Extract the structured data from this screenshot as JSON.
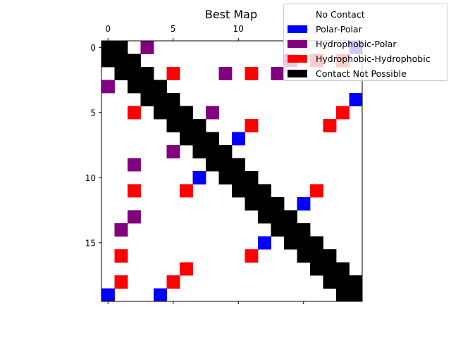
{
  "chart_data": {
    "type": "heatmap",
    "title": "Best Map",
    "size": 20,
    "xlim": [
      -0.5,
      19.5
    ],
    "ylim": [
      19.5,
      -0.5
    ],
    "xticks": [
      0,
      5,
      10,
      15
    ],
    "yticks": [
      0,
      5,
      10,
      15
    ],
    "xaxis_position": "top",
    "legend_position": "top-right",
    "grid": false,
    "categories": [
      {
        "code": 0,
        "label": "No Contact",
        "color": "#ffffff"
      },
      {
        "code": 1,
        "label": "Polar-Polar",
        "color": "#0000ff"
      },
      {
        "code": 2,
        "label": "Hydrophobic-Polar",
        "color": "#800080"
      },
      {
        "code": 3,
        "label": "Hydrophobic-Hydrophobic",
        "color": "#ff0000"
      },
      {
        "code": 4,
        "label": "Contact Not Possible",
        "color": "#000000"
      }
    ],
    "matrix": [
      [
        4,
        4,
        0,
        2,
        0,
        0,
        0,
        0,
        0,
        0,
        0,
        0,
        0,
        0,
        0,
        0,
        0,
        0,
        0,
        1
      ],
      [
        4,
        4,
        4,
        0,
        0,
        0,
        0,
        0,
        0,
        0,
        0,
        0,
        0,
        0,
        2,
        0,
        3,
        0,
        3,
        0
      ],
      [
        0,
        4,
        4,
        4,
        0,
        3,
        0,
        0,
        0,
        2,
        0,
        3,
        0,
        2,
        0,
        0,
        0,
        0,
        0,
        0
      ],
      [
        2,
        0,
        4,
        4,
        4,
        0,
        0,
        0,
        0,
        0,
        0,
        0,
        0,
        0,
        0,
        0,
        0,
        0,
        0,
        0
      ],
      [
        0,
        0,
        0,
        4,
        4,
        4,
        0,
        0,
        0,
        0,
        0,
        0,
        0,
        0,
        0,
        0,
        0,
        0,
        0,
        1
      ],
      [
        0,
        0,
        3,
        0,
        4,
        4,
        4,
        0,
        2,
        0,
        0,
        0,
        0,
        0,
        0,
        0,
        0,
        0,
        3,
        0
      ],
      [
        0,
        0,
        0,
        0,
        0,
        4,
        4,
        4,
        0,
        0,
        0,
        3,
        0,
        0,
        0,
        0,
        0,
        3,
        0,
        0
      ],
      [
        0,
        0,
        0,
        0,
        0,
        0,
        4,
        4,
        4,
        0,
        1,
        0,
        0,
        0,
        0,
        0,
        0,
        0,
        0,
        0
      ],
      [
        0,
        0,
        0,
        0,
        0,
        2,
        0,
        4,
        4,
        4,
        0,
        0,
        0,
        0,
        0,
        0,
        0,
        0,
        0,
        0
      ],
      [
        0,
        0,
        2,
        0,
        0,
        0,
        0,
        0,
        4,
        4,
        4,
        0,
        0,
        0,
        0,
        0,
        0,
        0,
        0,
        0
      ],
      [
        0,
        0,
        0,
        0,
        0,
        0,
        0,
        1,
        0,
        4,
        4,
        4,
        0,
        0,
        0,
        0,
        0,
        0,
        0,
        0
      ],
      [
        0,
        0,
        3,
        0,
        0,
        0,
        3,
        0,
        0,
        0,
        4,
        4,
        4,
        0,
        0,
        0,
        3,
        0,
        0,
        0
      ],
      [
        0,
        0,
        0,
        0,
        0,
        0,
        0,
        0,
        0,
        0,
        0,
        4,
        4,
        4,
        0,
        1,
        0,
        0,
        0,
        0
      ],
      [
        0,
        0,
        2,
        0,
        0,
        0,
        0,
        0,
        0,
        0,
        0,
        0,
        4,
        4,
        4,
        0,
        0,
        0,
        0,
        0
      ],
      [
        0,
        2,
        0,
        0,
        0,
        0,
        0,
        0,
        0,
        0,
        0,
        0,
        0,
        4,
        4,
        4,
        0,
        0,
        0,
        0
      ],
      [
        0,
        0,
        0,
        0,
        0,
        0,
        0,
        0,
        0,
        0,
        0,
        0,
        1,
        0,
        4,
        4,
        4,
        0,
        0,
        0
      ],
      [
        0,
        3,
        0,
        0,
        0,
        0,
        0,
        0,
        0,
        0,
        0,
        3,
        0,
        0,
        0,
        4,
        4,
        4,
        0,
        0
      ],
      [
        0,
        0,
        0,
        0,
        0,
        0,
        3,
        0,
        0,
        0,
        0,
        0,
        0,
        0,
        0,
        0,
        4,
        4,
        4,
        0
      ],
      [
        0,
        3,
        0,
        0,
        0,
        3,
        0,
        0,
        0,
        0,
        0,
        0,
        0,
        0,
        0,
        0,
        0,
        4,
        4,
        4
      ],
      [
        1,
        0,
        0,
        0,
        1,
        0,
        0,
        0,
        0,
        0,
        0,
        0,
        0,
        0,
        0,
        0,
        0,
        0,
        4,
        4
      ]
    ]
  }
}
